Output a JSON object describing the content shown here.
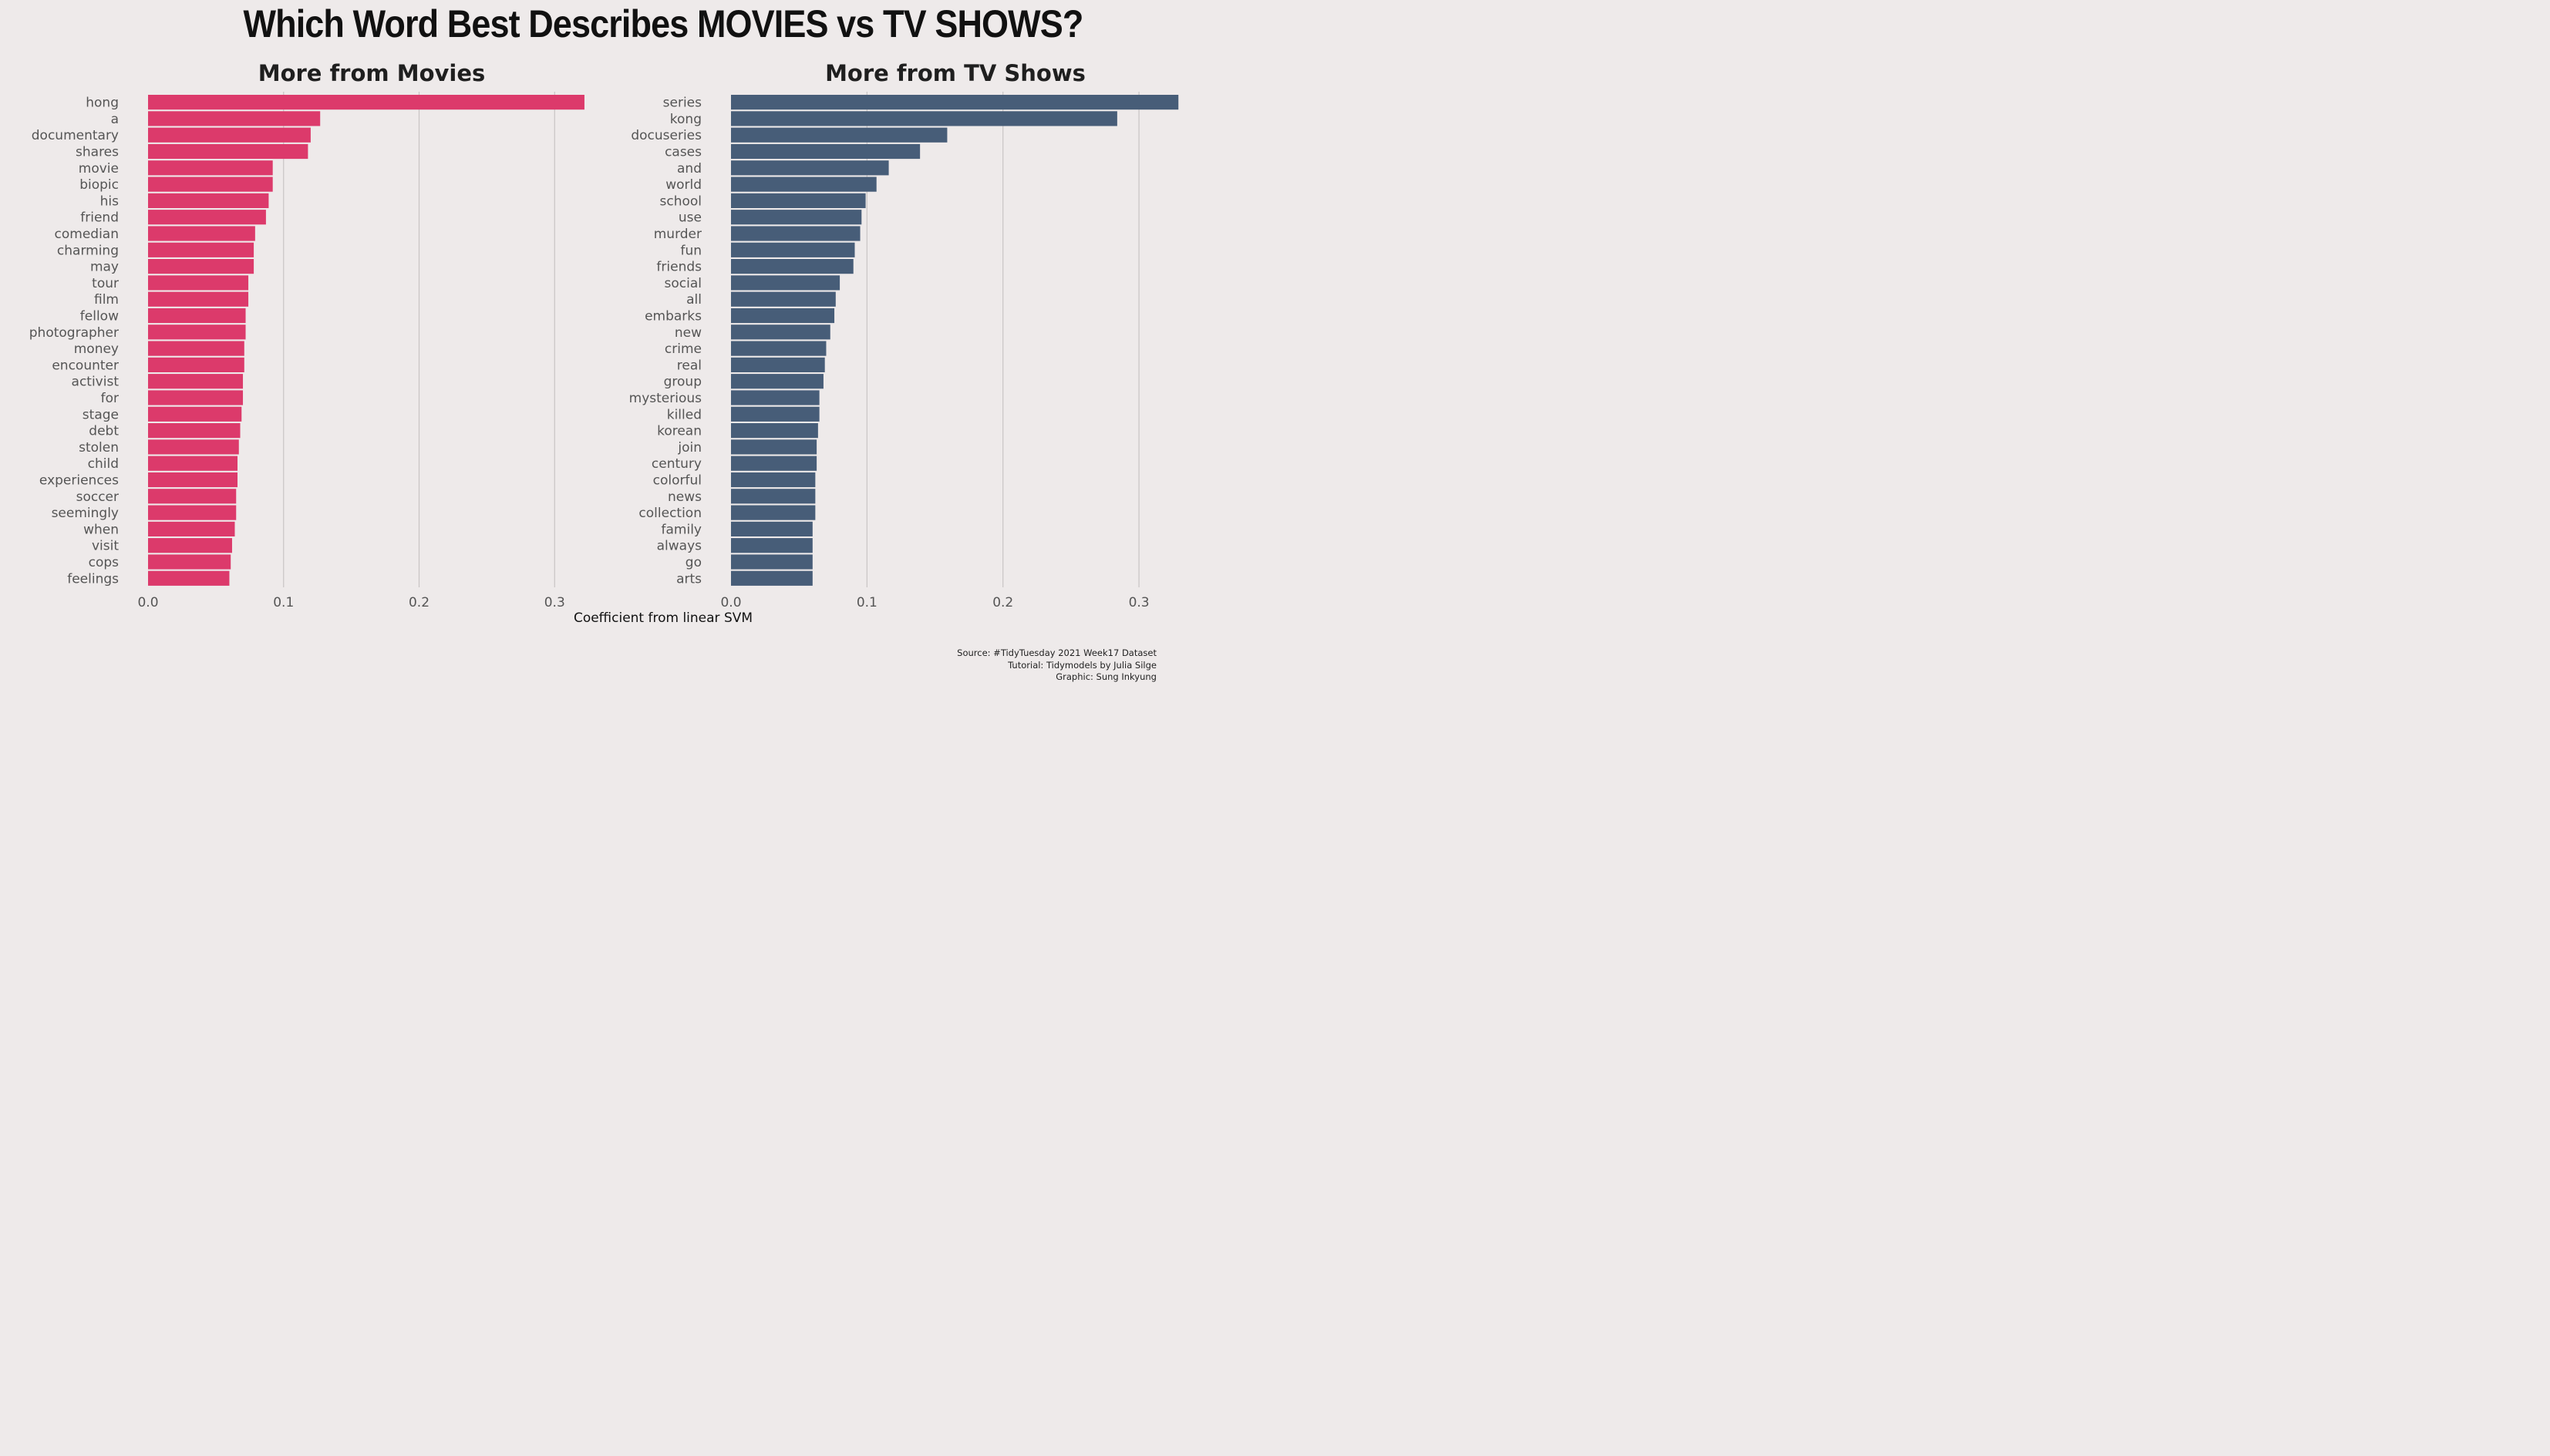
{
  "title": "Which Word Best Describes MOVIES vs TV SHOWS?",
  "caption": {
    "line1": "Source: #TidyTuesday 2021 Week17 Dataset",
    "line2": "Tutorial: Tidymodels by Julia Silge",
    "line3": "Graphic: Sung Inkyung"
  },
  "colors": {
    "movies": "#dc3a6b",
    "tv": "#475d78",
    "grid": "#c8c4c4",
    "background": "#eeeaea"
  },
  "chart_data": [
    {
      "type": "bar",
      "orientation": "horizontal",
      "title": "More from Movies",
      "xlabel": "Coefficient from linear SVM",
      "xlim": [
        0,
        0.33
      ],
      "xticks": [
        "0.0",
        "0.1",
        "0.2",
        "0.3"
      ],
      "grid": true,
      "categories": [
        "hong",
        "a",
        "documentary",
        "shares",
        "movie",
        "biopic",
        "his",
        "friend",
        "comedian",
        "charming",
        "may",
        "tour",
        "film",
        "fellow",
        "photographer",
        "money",
        "encounter",
        "activist",
        "for",
        "stage",
        "debt",
        "stolen",
        "child",
        "experiences",
        "soccer",
        "seemingly",
        "when",
        "visit",
        "cops",
        "feelings"
      ],
      "values": [
        0.322,
        0.127,
        0.12,
        0.118,
        0.092,
        0.092,
        0.089,
        0.087,
        0.079,
        0.078,
        0.078,
        0.074,
        0.074,
        0.072,
        0.072,
        0.071,
        0.071,
        0.07,
        0.07,
        0.069,
        0.068,
        0.067,
        0.066,
        0.066,
        0.065,
        0.065,
        0.064,
        0.062,
        0.061,
        0.06
      ]
    },
    {
      "type": "bar",
      "orientation": "horizontal",
      "title": "More from TV Shows",
      "xlabel": "Coefficient from linear SVM",
      "xlim": [
        0,
        0.33
      ],
      "xticks": [
        "0.0",
        "0.1",
        "0.2",
        "0.3"
      ],
      "grid": true,
      "categories": [
        "series",
        "kong",
        "docuseries",
        "cases",
        "and",
        "world",
        "school",
        "use",
        "murder",
        "fun",
        "friends",
        "social",
        "all",
        "embarks",
        "new",
        "crime",
        "real",
        "group",
        "mysterious",
        "killed",
        "korean",
        "join",
        "century",
        "colorful",
        "news",
        "collection",
        "family",
        "always",
        "go",
        "arts"
      ],
      "values": [
        0.329,
        0.284,
        0.159,
        0.139,
        0.116,
        0.107,
        0.099,
        0.096,
        0.095,
        0.091,
        0.09,
        0.08,
        0.077,
        0.076,
        0.073,
        0.07,
        0.069,
        0.068,
        0.065,
        0.065,
        0.064,
        0.063,
        0.063,
        0.062,
        0.062,
        0.062,
        0.06,
        0.06,
        0.06,
        0.06
      ]
    }
  ]
}
